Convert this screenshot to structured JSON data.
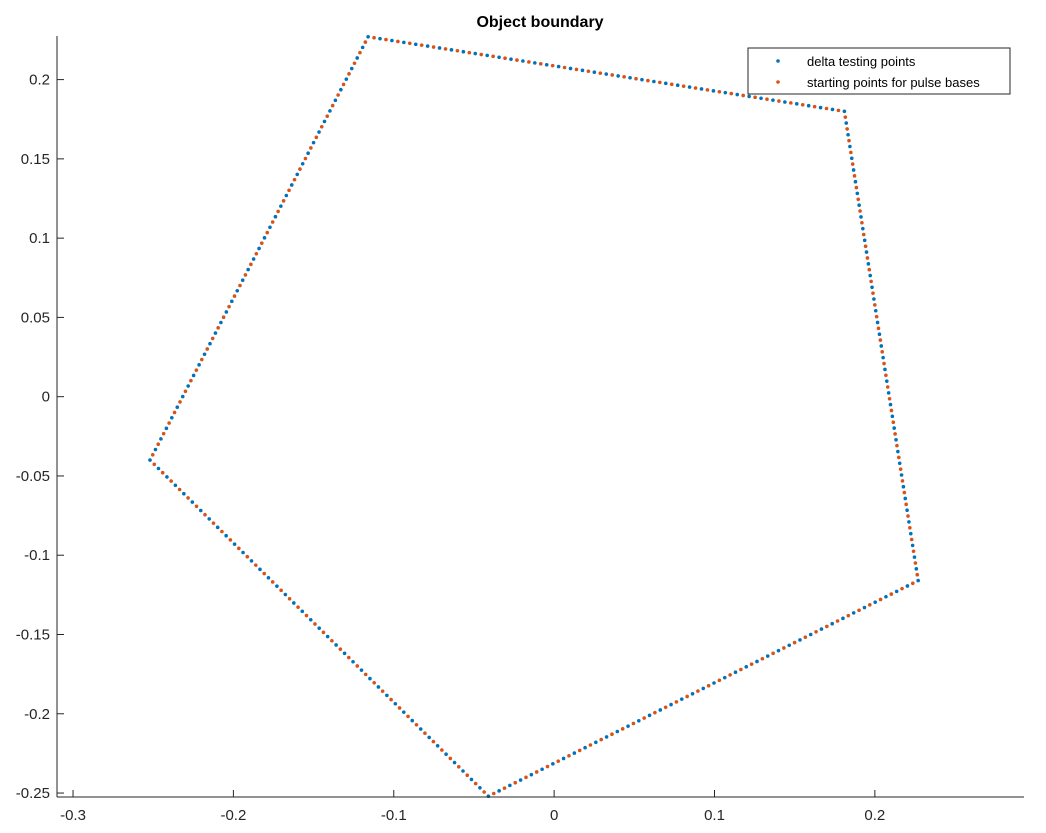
{
  "chart_data": {
    "type": "scatter",
    "title": "Object boundary",
    "xlabel": "",
    "ylabel": "",
    "xlim": [
      -0.31,
      0.293
    ],
    "ylim": [
      -0.2525,
      0.2275
    ],
    "xticks": [
      -0.3,
      -0.2,
      -0.1,
      0,
      0.1,
      0.2
    ],
    "xtick_labels": [
      "-0.3",
      "-0.2",
      "-0.1",
      "0",
      "0.1",
      "0.2"
    ],
    "yticks": [
      -0.25,
      -0.2,
      -0.15,
      -0.1,
      -0.05,
      0,
      0.05,
      0.1,
      0.15,
      0.2
    ],
    "ytick_labels": [
      "-0.25",
      "-0.2",
      "-0.15",
      "-0.1",
      "-0.05",
      "0",
      "0.05",
      "0.1",
      "0.15",
      "0.2"
    ],
    "grid": false,
    "legend_position": "top-right",
    "points_per_edge": 40,
    "vertices": [
      {
        "x": -0.116,
        "y": 0.227
      },
      {
        "x": 0.181,
        "y": 0.18
      },
      {
        "x": 0.227,
        "y": -0.116
      },
      {
        "x": -0.041,
        "y": -0.252
      },
      {
        "x": -0.252,
        "y": -0.04
      }
    ],
    "series": [
      {
        "name": "delta testing points",
        "color": "#0072BD",
        "marker": "dot"
      },
      {
        "name": "starting points for pulse bases",
        "color": "#D95319",
        "marker": "dot"
      }
    ]
  }
}
